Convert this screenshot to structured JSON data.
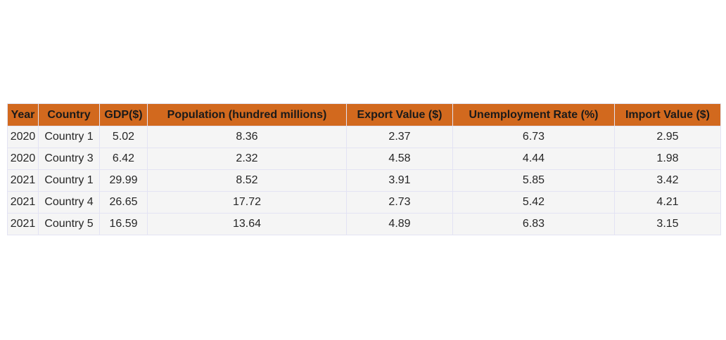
{
  "chart_data": {
    "type": "table",
    "columns": [
      "Year",
      "Country",
      "GDP($)",
      "Population (hundred millions)",
      "Export Value ($)",
      "Unemployment Rate (%)",
      "Import Value ($)"
    ],
    "rows": [
      [
        "2020",
        "Country 1",
        "5.02",
        "8.36",
        "2.37",
        "6.73",
        "2.95"
      ],
      [
        "2020",
        "Country 3",
        "6.42",
        "2.32",
        "4.58",
        "4.44",
        "1.98"
      ],
      [
        "2021",
        "Country 1",
        "29.99",
        "8.52",
        "3.91",
        "5.85",
        "3.42"
      ],
      [
        "2021",
        "Country 4",
        "26.65",
        "17.72",
        "2.73",
        "5.42",
        "4.21"
      ],
      [
        "2021",
        "Country 5",
        "16.59",
        "13.64",
        "4.89",
        "6.83",
        "3.15"
      ]
    ]
  },
  "colors": {
    "header_bg": "#d2691e",
    "cell_bg": "#f5f5f5",
    "grid": "#e3e3f3"
  }
}
